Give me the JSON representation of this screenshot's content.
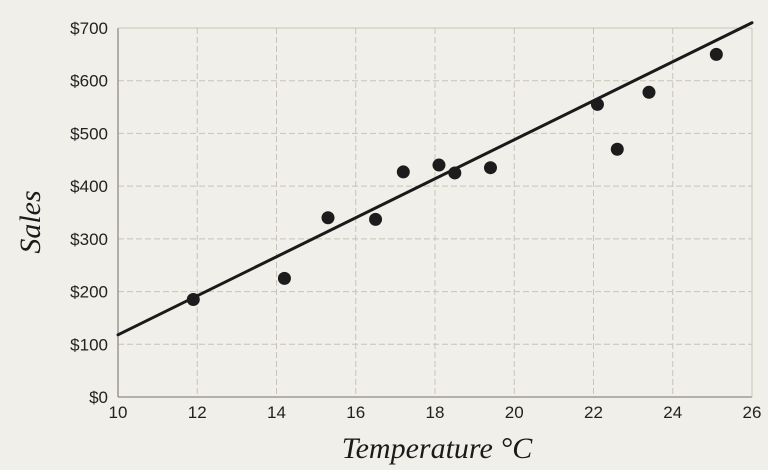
{
  "chart_data": {
    "type": "scatter",
    "title": "",
    "xlabel": "Temperature °C",
    "ylabel": "Sales",
    "xlim": [
      10,
      26
    ],
    "ylim": [
      0,
      700
    ],
    "x_ticks": [
      "10",
      "12",
      "14",
      "16",
      "18",
      "20",
      "22",
      "24",
      "26"
    ],
    "y_ticks": [
      "$0",
      "$100",
      "$200",
      "$300",
      "$400",
      "$500",
      "$600",
      "$700"
    ],
    "grid": true,
    "legend": "none",
    "series": [
      {
        "points": [
          {
            "x": 11.9,
            "y": 185
          },
          {
            "x": 14.2,
            "y": 225
          },
          {
            "x": 15.3,
            "y": 340
          },
          {
            "x": 16.5,
            "y": 337
          },
          {
            "x": 17.2,
            "y": 427
          },
          {
            "x": 18.1,
            "y": 440
          },
          {
            "x": 18.5,
            "y": 425
          },
          {
            "x": 19.4,
            "y": 435
          },
          {
            "x": 22.1,
            "y": 555
          },
          {
            "x": 22.6,
            "y": 470
          },
          {
            "x": 23.4,
            "y": 578
          },
          {
            "x": 25.1,
            "y": 650
          }
        ]
      }
    ],
    "trendline": {
      "x": [
        10,
        26
      ],
      "y": [
        118,
        710
      ]
    },
    "colors": {
      "background": "#f1efe9",
      "grid": "#c9c4b8",
      "points": "#1c1c1c",
      "trend": "#1a1a1a"
    }
  }
}
